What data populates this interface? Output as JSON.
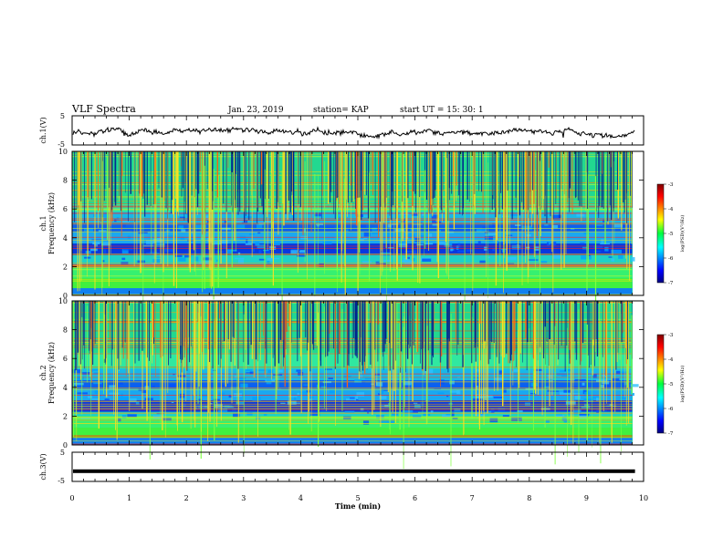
{
  "header": {
    "title": "VLF Spectra",
    "date": "Jan. 23, 2019",
    "station": "station= KAP",
    "start": "start  UT  =   15: 30: 1"
  },
  "chart_data": [
    {
      "type": "line",
      "name": "ch1-waveform",
      "ylabel": "ch.1(V)",
      "ylim": [
        -5,
        5
      ],
      "yticks": [
        5,
        -5
      ],
      "xlim": [
        0,
        10
      ],
      "approx_mean": -0.5,
      "approx_range": [
        -2.5,
        2.5
      ]
    },
    {
      "type": "heatmap",
      "name": "ch1-spectrogram",
      "ylabel": "ch.1\nFrequency (kHz)",
      "ylim": [
        0,
        10
      ],
      "yticks": [
        0,
        2,
        4,
        6,
        8,
        10
      ],
      "xlim": [
        0,
        9.8
      ],
      "colorbar": {
        "label": "log(PSD)(V²/Hz)",
        "range": [
          -7,
          -3
        ],
        "ticks": [
          -3,
          -4,
          -5,
          -6,
          -7
        ]
      }
    },
    {
      "type": "heatmap",
      "name": "ch2-spectrogram",
      "ylabel": "ch.2\nFrequency (kHz)",
      "ylim": [
        0,
        10
      ],
      "yticks": [
        0,
        2,
        4,
        6,
        8,
        10
      ],
      "xlim": [
        0,
        9.8
      ],
      "colorbar": {
        "label": "log(PSD)(V²/Hz)",
        "range": [
          -7,
          -3
        ],
        "ticks": [
          -3,
          -4,
          -5,
          -6,
          -7
        ]
      }
    },
    {
      "type": "line",
      "name": "ch3-waveform",
      "ylabel": "ch.3(V)",
      "ylim": [
        -5,
        5
      ],
      "yticks": [
        5,
        -5
      ],
      "xlim": [
        0,
        10
      ],
      "approx_value": -1.5
    }
  ],
  "xaxis": {
    "label": "Time (min)",
    "range": [
      0,
      10
    ],
    "ticks": [
      0,
      1,
      2,
      3,
      4,
      5,
      6,
      7,
      8,
      9,
      10
    ]
  }
}
